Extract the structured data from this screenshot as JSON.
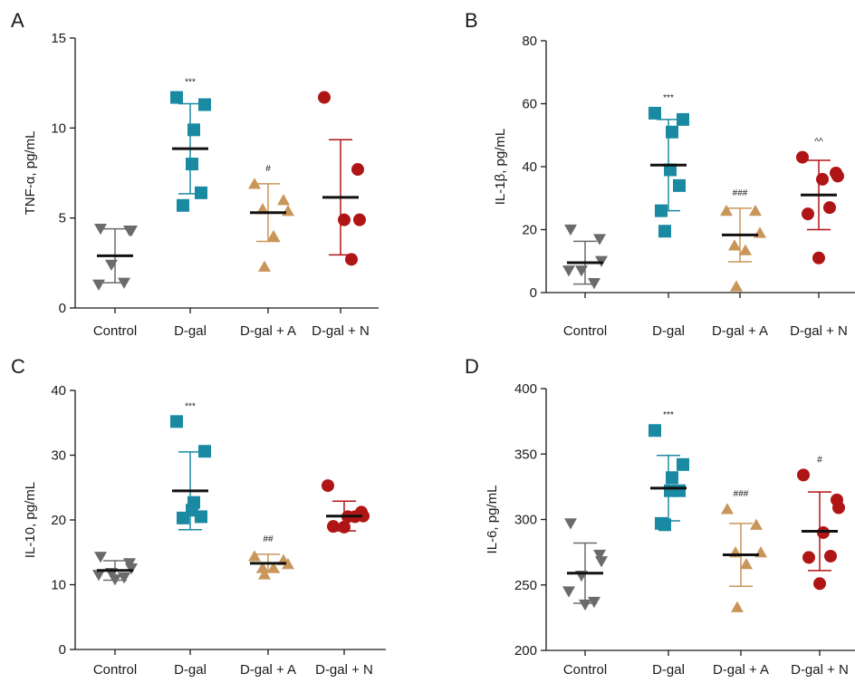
{
  "figure": {
    "categories": [
      "Control",
      "D-gal",
      "D-gal + A",
      "D-gal + N"
    ]
  },
  "chart_data": [
    {
      "type": "scatter",
      "panel": "A",
      "ylabel": "TNF-α, pg/mL",
      "ylim": [
        0,
        15
      ],
      "yticks": [
        0,
        5,
        10,
        15
      ],
      "categories": [
        "Control",
        "D-gal",
        "D-gal + A",
        "D-gal + N"
      ],
      "series": [
        {
          "category": "Control",
          "mean": 2.9,
          "sd": 1.5,
          "points": [
            4.4,
            4.3,
            4.3,
            2.4,
            1.3,
            1.4
          ],
          "significance": ""
        },
        {
          "category": "D-gal",
          "mean": 8.85,
          "sd": 2.5,
          "points": [
            11.7,
            11.3,
            9.9,
            8.0,
            6.4,
            5.7
          ],
          "significance": "***"
        },
        {
          "category": "D-gal + A",
          "mean": 5.3,
          "sd": 1.6,
          "points": [
            6.9,
            6.0,
            5.4,
            5.5,
            4.0,
            2.3
          ],
          "significance": "#"
        },
        {
          "category": "D-gal + N",
          "mean": 6.15,
          "sd": 3.2,
          "points": [
            11.7,
            7.7,
            4.9,
            4.9,
            2.7
          ],
          "significance": ""
        }
      ]
    },
    {
      "type": "scatter",
      "panel": "B",
      "ylabel": "IL-1β, pg/mL",
      "ylim": [
        0,
        80
      ],
      "yticks": [
        0,
        20,
        40,
        60,
        80
      ],
      "categories": [
        "Control",
        "D-gal",
        "D-gal + A",
        "D-gal + N"
      ],
      "series": [
        {
          "category": "Control",
          "mean": 9.5,
          "sd": 6.8,
          "points": [
            20,
            17,
            10,
            7,
            7,
            3
          ],
          "significance": ""
        },
        {
          "category": "D-gal",
          "mean": 40.5,
          "sd": 14.5,
          "points": [
            57,
            55,
            51,
            39,
            34,
            26,
            19.5
          ],
          "significance": "***"
        },
        {
          "category": "D-gal + A",
          "mean": 18.3,
          "sd": 8.5,
          "points": [
            26,
            26,
            19,
            15,
            13.5,
            2
          ],
          "significance": "###"
        },
        {
          "category": "D-gal + N",
          "mean": 31,
          "sd": 11,
          "points": [
            43,
            38,
            37,
            36,
            27,
            25,
            11
          ],
          "significance": "^^"
        }
      ]
    },
    {
      "type": "scatter",
      "panel": "C",
      "ylabel": "IL-10, pg/mL",
      "ylim": [
        0,
        40
      ],
      "yticks": [
        0,
        10,
        20,
        30,
        40
      ],
      "categories": [
        "Control",
        "D-gal",
        "D-gal + A",
        "D-gal + N"
      ],
      "series": [
        {
          "category": "Control",
          "mean": 12.2,
          "sd": 1.5,
          "points": [
            14.3,
            13.3,
            12.5,
            11.8,
            11.5,
            11.1,
            10.8
          ],
          "significance": ""
        },
        {
          "category": "D-gal",
          "mean": 24.5,
          "sd": 6,
          "points": [
            35.2,
            30.6,
            22.7,
            21.5,
            20.5,
            20.3
          ],
          "significance": "***"
        },
        {
          "category": "D-gal + A",
          "mean": 13.3,
          "sd": 1.4,
          "points": [
            14.4,
            13.8,
            13.2,
            12.6,
            12.6,
            11.6
          ],
          "significance": "##"
        },
        {
          "category": "D-gal + N",
          "mean": 20.6,
          "sd": 2.3,
          "points": [
            25.3,
            21.2,
            20.6,
            20.5,
            20.5,
            19.0,
            18.9
          ],
          "significance": ""
        }
      ]
    },
    {
      "type": "scatter",
      "panel": "D",
      "ylabel": "IL-6, pg/mL",
      "ylim": [
        200,
        400
      ],
      "yticks": [
        200,
        250,
        300,
        350,
        400
      ],
      "categories": [
        "Control",
        "D-gal",
        "D-gal + A",
        "D-gal + N"
      ],
      "series": [
        {
          "category": "Control",
          "mean": 259,
          "sd": 23,
          "points": [
            297,
            273,
            268,
            257,
            245,
            237,
            235
          ],
          "significance": ""
        },
        {
          "category": "D-gal",
          "mean": 324,
          "sd": 25,
          "points": [
            368,
            342,
            332,
            322,
            322,
            297,
            296
          ],
          "significance": "***"
        },
        {
          "category": "D-gal + A",
          "mean": 273,
          "sd": 24,
          "points": [
            308,
            296,
            275,
            275,
            266,
            233
          ],
          "significance": "###"
        },
        {
          "category": "D-gal + N",
          "mean": 291,
          "sd": 30,
          "points": [
            334,
            315,
            309,
            290,
            272,
            271,
            251
          ],
          "significance": "#"
        }
      ]
    }
  ],
  "colors": {
    "groups": [
      "#6b6b6b",
      "#1a8aa3",
      "#c9965a",
      "#b01515"
    ],
    "axis": "#1a1a1a",
    "mean_line": "#111111"
  },
  "markers": [
    "triangle-down-icon",
    "square-icon",
    "triangle-up-icon",
    "circle-icon"
  ]
}
